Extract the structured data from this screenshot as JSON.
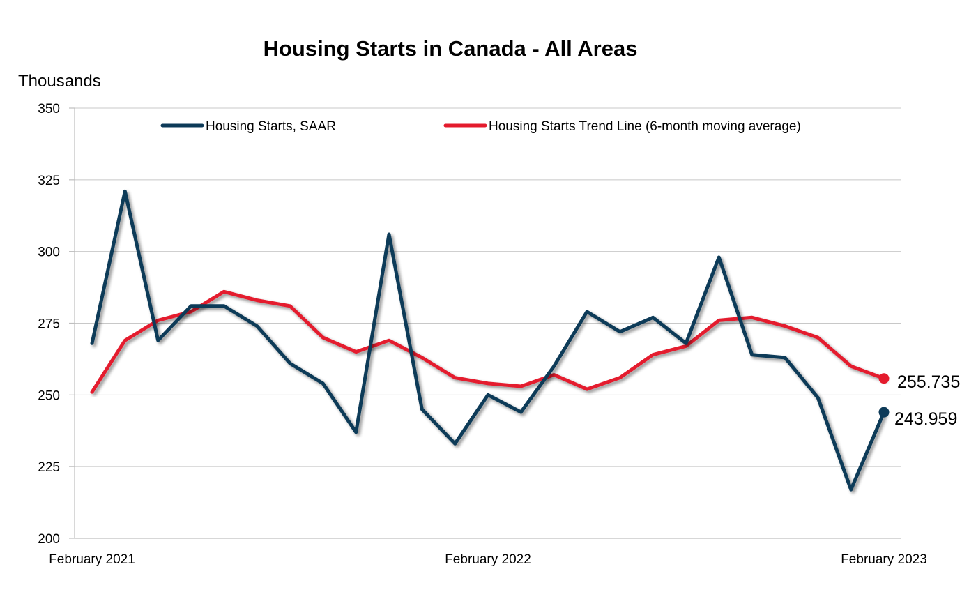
{
  "chart_data": {
    "type": "line",
    "title": "Housing Starts in Canada - All Areas",
    "ylabel": "Thousands",
    "xlabel": "",
    "ylim": [
      200,
      350
    ],
    "yticks": [
      200,
      225,
      250,
      275,
      300,
      325,
      350
    ],
    "x_tick_labels": [
      "February 2021",
      "February 2022",
      "February 2023"
    ],
    "grid": true,
    "legend_position": "top",
    "x": [
      "2021-02",
      "2021-03",
      "2021-04",
      "2021-05",
      "2021-06",
      "2021-07",
      "2021-08",
      "2021-09",
      "2021-10",
      "2021-11",
      "2021-12",
      "2022-01",
      "2022-02",
      "2022-03",
      "2022-04",
      "2022-05",
      "2022-06",
      "2022-07",
      "2022-08",
      "2022-09",
      "2022-10",
      "2022-11",
      "2022-12",
      "2023-01",
      "2023-02"
    ],
    "series": [
      {
        "name": "Housing Starts, SAAR",
        "color": "#0d3a58",
        "values": [
          268,
          321,
          269,
          281,
          281,
          274,
          261,
          254,
          237,
          306,
          245,
          233,
          250,
          244,
          260,
          279,
          272,
          277,
          268,
          298,
          264,
          263,
          249,
          217,
          243.959
        ],
        "end_label": "243.959"
      },
      {
        "name": "Housing Starts Trend Line (6-month moving average)",
        "color": "#e41b2d",
        "values": [
          251,
          269,
          276,
          279,
          286,
          283,
          281,
          270,
          265,
          269,
          263,
          256,
          254,
          253,
          257,
          252,
          256,
          264,
          267,
          276,
          277,
          274,
          270,
          260,
          255.735
        ],
        "end_label": "255.735"
      }
    ]
  }
}
